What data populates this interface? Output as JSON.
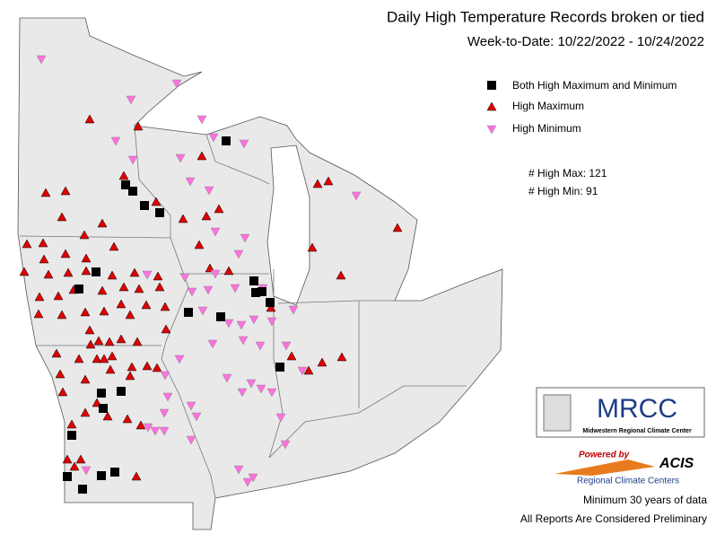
{
  "title": "Daily High Temperature Records broken or tied",
  "subtitle": "Week-to-Date:  10/22/2022 - 10/24/2022",
  "legend": [
    {
      "label": "Both High Maximum and Minimum"
    },
    {
      "label": "High Maximum"
    },
    {
      "label": "High Minimum"
    }
  ],
  "counts": [
    "# High Max: 121",
    "# High Min: 91"
  ],
  "logo": {
    "name": "MRCC",
    "subtitle": "Midwestern Regional Climate Center"
  },
  "acis": {
    "powered": "Powered by",
    "name": "ACIS",
    "subtitle": "Regional Climate Centers"
  },
  "footer": [
    "Minimum 30 years of data",
    "All Reports Are Considered Preliminary"
  ]
}
